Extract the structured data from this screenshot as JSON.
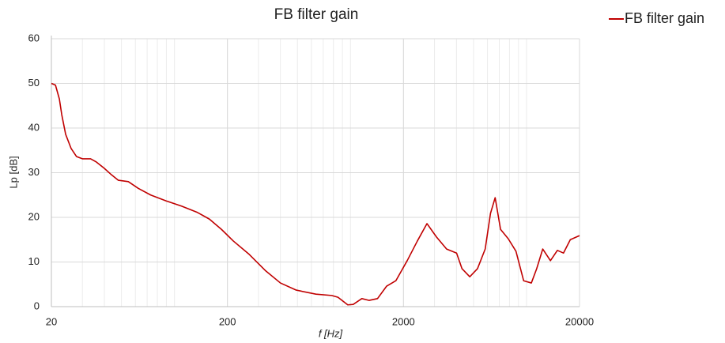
{
  "chart_data": {
    "type": "line",
    "title": "FB filter gain",
    "x_label": "f  [Hz]",
    "y_label": "Lp  [dB]",
    "x": [
      20,
      21.1,
      22.2,
      22.9,
      24.1,
      25.9,
      27.8,
      30.1,
      33.4,
      36,
      39.9,
      43.4,
      48,
      54.7,
      62.3,
      73.3,
      89.5,
      110,
      135,
      158,
      185,
      216,
      266,
      328,
      400,
      492,
      636,
      782,
      849,
      965,
      1036,
      1160,
      1277,
      1424,
      1605,
      1810,
      2100,
      2398,
      2720,
      3080,
      3516,
      4006,
      4300,
      4760,
      5266,
      5823,
      6243,
      6634,
      7120,
      7875,
      8710,
      9630,
      10650,
      11420,
      12360,
      13670,
      14970,
      16210,
      17730,
      20000
    ],
    "series": [
      {
        "name": "FB filter gain",
        "color": "#c00000",
        "values": [
          50,
          49.6,
          46.5,
          43,
          38.6,
          35.4,
          33.6,
          33.1,
          33.1,
          32.4,
          31,
          29.7,
          28.3,
          28,
          26.5,
          25,
          23.7,
          22.5,
          21.1,
          19.6,
          17.3,
          14.7,
          11.7,
          8.1,
          5.3,
          3.7,
          2.8,
          2.5,
          2.1,
          0.4,
          0.5,
          1.8,
          1.4,
          1.8,
          4.6,
          5.8,
          10.3,
          14.7,
          18.6,
          15.6,
          12.9,
          12,
          8.5,
          6.7,
          8.5,
          12.9,
          20.9,
          24.4,
          17.3,
          15.2,
          12.4,
          5.8,
          5.3,
          8.5,
          12.9,
          10.3,
          12.6,
          12,
          15,
          15.9
        ]
      }
    ],
    "xlim": [
      20,
      20000
    ],
    "xticks": [
      20,
      200,
      2000,
      20000
    ],
    "x_log": true,
    "ylim": [
      0,
      60
    ],
    "yticks": [
      0,
      10,
      20,
      30,
      40,
      50,
      60
    ],
    "grid": true,
    "legend": "top-right"
  }
}
